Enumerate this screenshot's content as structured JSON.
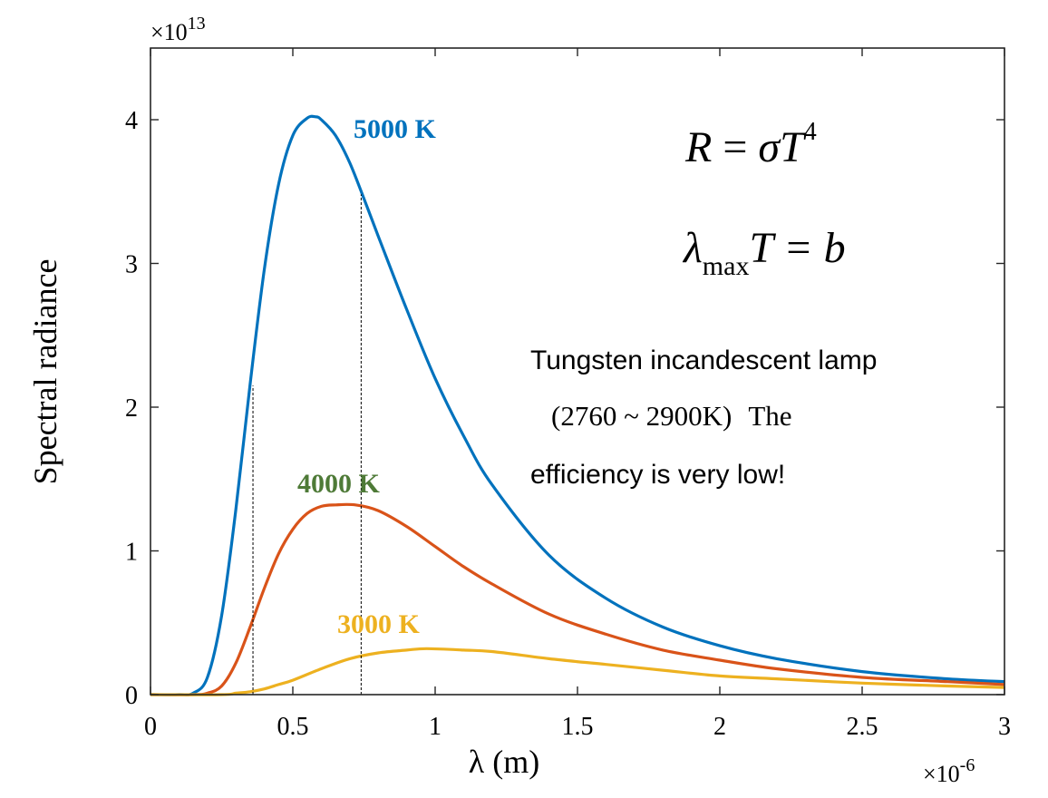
{
  "chart_data": {
    "type": "line",
    "title": "",
    "xlabel": "λ (m)",
    "ylabel": "Spectral radiance",
    "x_multiplier": "×10",
    "x_multiplier_exp": "-6",
    "y_multiplier": "×10",
    "y_multiplier_exp": "13",
    "xlim": [
      0,
      3
    ],
    "ylim": [
      0,
      4.5
    ],
    "xticks": [
      0,
      0.5,
      1,
      1.5,
      2,
      2.5,
      3
    ],
    "xtick_labels": [
      "0",
      "0.5",
      "1",
      "1.5",
      "2",
      "2.5",
      "3"
    ],
    "yticks": [
      0,
      1,
      2,
      3,
      4
    ],
    "ytick_labels": [
      "0",
      "1",
      "2",
      "3",
      "4"
    ],
    "grid": false,
    "series": [
      {
        "name": "5000 K",
        "color": "#0072BD",
        "label_color": "#0072BD",
        "x": [
          0.1,
          0.15,
          0.2,
          0.25,
          0.3,
          0.35,
          0.4,
          0.45,
          0.5,
          0.55,
          0.58,
          0.6,
          0.65,
          0.7,
          0.75,
          0.8,
          0.9,
          1.0,
          1.1,
          1.2,
          1.4,
          1.6,
          1.8,
          2.0,
          2.2,
          2.5,
          2.8,
          3.0
        ],
        "y": [
          0.0,
          0.01,
          0.12,
          0.55,
          1.29,
          2.16,
          2.96,
          3.55,
          3.89,
          4.01,
          4.02,
          4.0,
          3.89,
          3.7,
          3.45,
          3.19,
          2.68,
          2.2,
          1.8,
          1.46,
          0.97,
          0.67,
          0.47,
          0.34,
          0.25,
          0.16,
          0.11,
          0.09
        ]
      },
      {
        "name": "4000 K",
        "color": "#D95319",
        "label_color": "#4E7A37",
        "x": [
          0.15,
          0.2,
          0.25,
          0.3,
          0.35,
          0.4,
          0.45,
          0.5,
          0.55,
          0.6,
          0.65,
          0.72,
          0.8,
          0.9,
          1.0,
          1.1,
          1.2,
          1.4,
          1.6,
          1.8,
          2.0,
          2.2,
          2.5,
          2.8,
          3.0
        ],
        "y": [
          0.0,
          0.01,
          0.06,
          0.22,
          0.47,
          0.74,
          0.98,
          1.15,
          1.26,
          1.31,
          1.32,
          1.32,
          1.28,
          1.17,
          1.03,
          0.89,
          0.77,
          0.56,
          0.42,
          0.31,
          0.24,
          0.18,
          0.12,
          0.09,
          0.07
        ]
      },
      {
        "name": "3000 K",
        "color": "#EDB120",
        "label_color": "#EDB120",
        "x": [
          0.25,
          0.3,
          0.35,
          0.4,
          0.45,
          0.5,
          0.6,
          0.7,
          0.8,
          0.9,
          0.97,
          1.1,
          1.2,
          1.4,
          1.6,
          1.8,
          2.0,
          2.2,
          2.5,
          2.8,
          3.0
        ],
        "y": [
          0.0,
          0.01,
          0.02,
          0.04,
          0.07,
          0.1,
          0.18,
          0.25,
          0.29,
          0.31,
          0.32,
          0.31,
          0.3,
          0.25,
          0.21,
          0.17,
          0.13,
          0.11,
          0.08,
          0.06,
          0.05
        ]
      }
    ],
    "reference_lines": [
      {
        "x": 0.36,
        "y_top": 2.15
      },
      {
        "x": 0.74,
        "y_top": 3.48
      }
    ],
    "annotations": {
      "formula1_lhs": "R",
      "formula1_eq": " = ",
      "formula1_sigma": "σ",
      "formula1_T": "T",
      "formula1_exp": "4",
      "formula2_lambda": "λ",
      "formula2_sub": "max",
      "formula2_T": "T",
      "formula2_rhs": " = b",
      "note_line1": "Tungsten incandescent lamp",
      "note_line2_serif": "(2760 ~ 2900K)",
      "note_line2_end": "The",
      "note_line3": "efficiency is very low!"
    }
  }
}
